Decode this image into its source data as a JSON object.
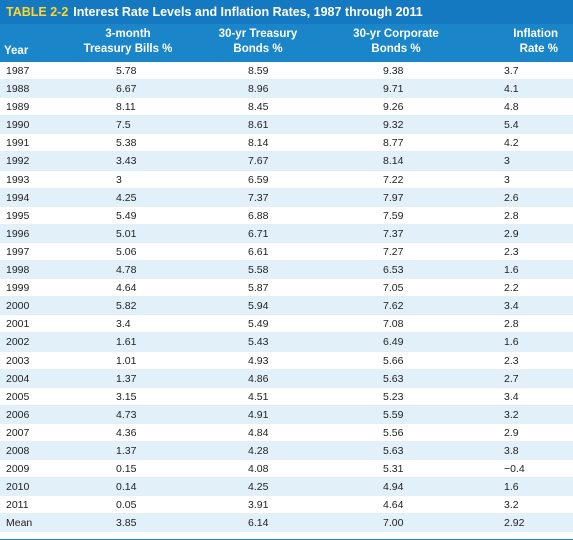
{
  "table": {
    "number": "TABLE 2-2",
    "title": "Interest Rate Levels and Inflation Rates, 1987 through 2011",
    "headers": {
      "year": "Year",
      "tbills_l1": "3-month",
      "tbills_l2": "Treasury Bills %",
      "tbonds_l1": "30-yr Treasury",
      "tbonds_l2": "Bonds %",
      "corp_l1": "30-yr Corporate",
      "corp_l2": "Bonds %",
      "infl_l1": "Inflation",
      "infl_l2": "Rate %"
    },
    "rows": [
      [
        "1987",
        "5.78",
        "8.59",
        "9.38",
        "3.7"
      ],
      [
        "1988",
        "6.67",
        "8.96",
        "9.71",
        "4.1"
      ],
      [
        "1989",
        "8.11",
        "8.45",
        "9.26",
        "4.8"
      ],
      [
        "1990",
        "7.5",
        "8.61",
        "9.32",
        "5.4"
      ],
      [
        "1991",
        "5.38",
        "8.14",
        "8.77",
        "4.2"
      ],
      [
        "1992",
        "3.43",
        "7.67",
        "8.14",
        "3"
      ],
      [
        "1993",
        "3",
        "6.59",
        "7.22",
        "3"
      ],
      [
        "1994",
        "4.25",
        "7.37",
        "7.97",
        "2.6"
      ],
      [
        "1995",
        "5.49",
        "6.88",
        "7.59",
        "2.8"
      ],
      [
        "1996",
        "5.01",
        "6.71",
        "7.37",
        "2.9"
      ],
      [
        "1997",
        "5.06",
        "6.61",
        "7.27",
        "2.3"
      ],
      [
        "1998",
        "4.78",
        "5.58",
        "6.53",
        "1.6"
      ],
      [
        "1999",
        "4.64",
        "5.87",
        "7.05",
        "2.2"
      ],
      [
        "2000",
        "5.82",
        "5.94",
        "7.62",
        "3.4"
      ],
      [
        "2001",
        "3.4",
        "5.49",
        "7.08",
        "2.8"
      ],
      [
        "2002",
        "1.61",
        "5.43",
        "6.49",
        "1.6"
      ],
      [
        "2003",
        "1.01",
        "4.93",
        "5.66",
        "2.3"
      ],
      [
        "2004",
        "1.37",
        "4.86",
        "5.63",
        "2.7"
      ],
      [
        "2005",
        "3.15",
        "4.51",
        "5.23",
        "3.4"
      ],
      [
        "2006",
        "4.73",
        "4.91",
        "5.59",
        "3.2"
      ],
      [
        "2007",
        "4.36",
        "4.84",
        "5.56",
        "2.9"
      ],
      [
        "2008",
        "1.37",
        "4.28",
        "5.63",
        "3.8"
      ],
      [
        "2009",
        "0.15",
        "4.08",
        "5.31",
        "−0.4"
      ],
      [
        "2010",
        "0.14",
        "4.25",
        "4.94",
        "1.6"
      ],
      [
        "2011",
        "0.05",
        "3.91",
        "4.64",
        "3.2"
      ],
      [
        "Mean",
        "3.85",
        "6.14",
        "7.00",
        "2.92"
      ]
    ]
  },
  "colors": {
    "title_bar": "#1479c0",
    "header_bar": "#1a86c9",
    "table_number": "#ffd52e",
    "alt_row": "#e2f0fa"
  }
}
